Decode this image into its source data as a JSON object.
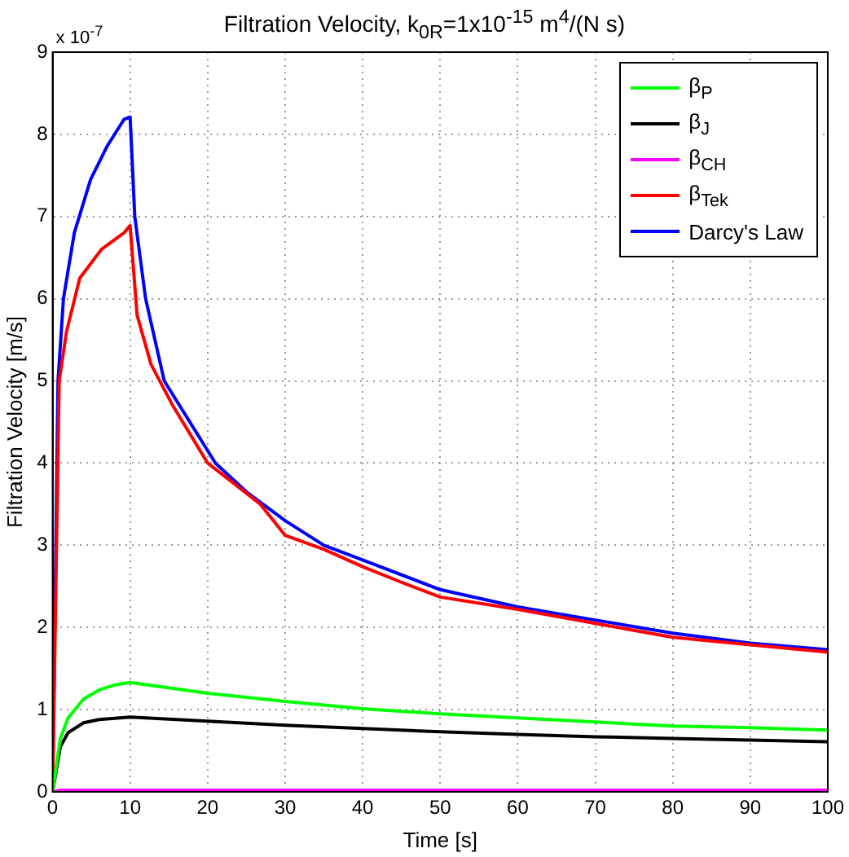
{
  "chart_data": {
    "type": "line",
    "title": "Filtration Velocity, k$_{0R}$=1x10$^{-15}$ m$^{4}$/(N s)",
    "xlabel": "Time [s]",
    "ylabel": "Filtration Velocity [m/s]",
    "annotations": [
      "x 10$^{-7}$"
    ],
    "xlim": [
      0,
      100
    ],
    "xticks": [
      0,
      10,
      20,
      30,
      40,
      50,
      60,
      70,
      80,
      90,
      100
    ],
    "ylim": [
      0,
      9
    ],
    "yticks": [
      0,
      1,
      2,
      3,
      4,
      5,
      6,
      7,
      8,
      9
    ],
    "grid": true,
    "legend": "top right",
    "marker": "none",
    "line_style": "solid",
    "series": [
      {
        "name": "β$_{P}$",
        "color": "#00ff00",
        "x": [
          0,
          1,
          2,
          4,
          6,
          8,
          10,
          20,
          30,
          40,
          50,
          60,
          70,
          80,
          90,
          100
        ],
        "values": [
          0,
          0.65,
          0.9,
          1.13,
          1.24,
          1.3,
          1.33,
          1.2,
          1.1,
          1.01,
          0.95,
          0.9,
          0.85,
          0.8,
          0.78,
          0.75
        ]
      },
      {
        "name": "β$_{J}$",
        "color": "#000000",
        "x": [
          0,
          1,
          2,
          4,
          6,
          10,
          20,
          30,
          40,
          50,
          60,
          70,
          80,
          90,
          100
        ],
        "values": [
          0,
          0.55,
          0.72,
          0.84,
          0.88,
          0.91,
          0.86,
          0.81,
          0.77,
          0.73,
          0.7,
          0.67,
          0.65,
          0.63,
          0.61
        ]
      },
      {
        "name": "β$_{CH}$",
        "color": "#ff00ff",
        "x": [
          0,
          1,
          100
        ],
        "values": [
          0,
          0.02,
          0.02
        ]
      },
      {
        "name": "β$_{Tek}$",
        "color": "#ff0000",
        "x": [
          0,
          0.85,
          1.8,
          3.5,
          6.3,
          9.2,
          10,
          10.9,
          12.7,
          15.5,
          20,
          26.8,
          30,
          35,
          40,
          45,
          50,
          60,
          70,
          80,
          90,
          100
        ],
        "values": [
          0,
          5.0,
          5.6,
          6.25,
          6.6,
          6.8,
          6.89,
          5.8,
          5.2,
          4.7,
          4.0,
          3.5,
          3.12,
          2.95,
          2.74,
          2.55,
          2.37,
          2.22,
          2.05,
          1.88,
          1.79,
          1.7
        ]
      },
      {
        "name": "Darcy's Law",
        "color": "#0000ff",
        "x": [
          0,
          0.7,
          1.4,
          2.8,
          4.9,
          7,
          9.2,
          10,
          10.6,
          12,
          14.4,
          21,
          25,
          30,
          35,
          40,
          50,
          60,
          70,
          80,
          90,
          100
        ],
        "values": [
          0,
          5.0,
          6.0,
          6.8,
          7.45,
          7.85,
          8.18,
          8.21,
          7.0,
          6.0,
          5.0,
          4.0,
          3.65,
          3.3,
          3.0,
          2.82,
          2.46,
          2.25,
          2.09,
          1.93,
          1.81,
          1.73
        ]
      }
    ]
  }
}
